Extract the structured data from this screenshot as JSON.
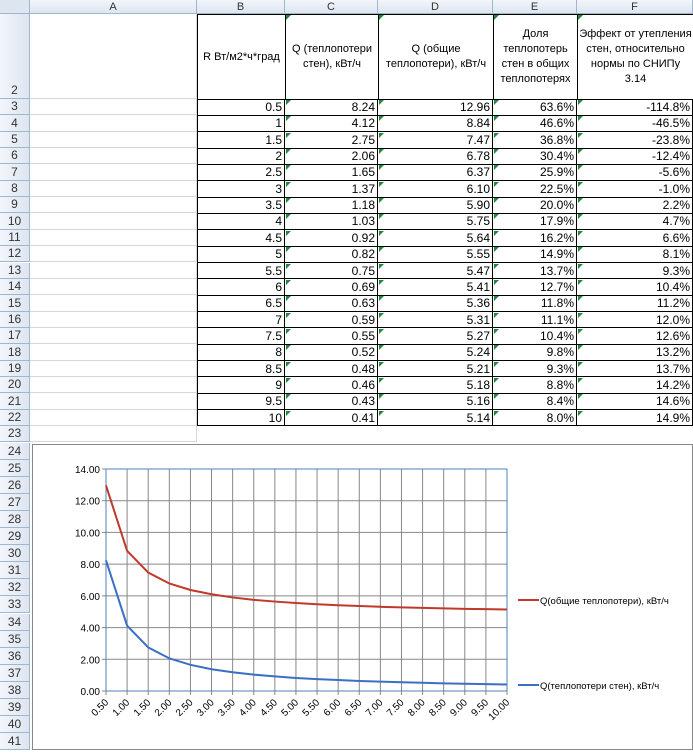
{
  "columns": [
    "A",
    "B",
    "C",
    "D",
    "E",
    "F"
  ],
  "headers": {
    "B": "R Вт/м2*ч*град",
    "C": "Q (теплопотери стен), кВт/ч",
    "D": "Q (общие теплопотери), кВт/ч",
    "E": "Доля теплопотерь стен в общих теплопотерях",
    "F": "Эффект от утепления стен, относительно нормы по СНИПу 3.14"
  },
  "rows": [
    [
      "0.5",
      "8.24",
      "12.96",
      "63.6%",
      "-114.8%"
    ],
    [
      "1",
      "4.12",
      "8.84",
      "46.6%",
      "-46.5%"
    ],
    [
      "1.5",
      "2.75",
      "7.47",
      "36.8%",
      "-23.8%"
    ],
    [
      "2",
      "2.06",
      "6.78",
      "30.4%",
      "-12.4%"
    ],
    [
      "2.5",
      "1.65",
      "6.37",
      "25.9%",
      "-5.6%"
    ],
    [
      "3",
      "1.37",
      "6.10",
      "22.5%",
      "-1.0%"
    ],
    [
      "3.5",
      "1.18",
      "5.90",
      "20.0%",
      "2.2%"
    ],
    [
      "4",
      "1.03",
      "5.75",
      "17.9%",
      "4.7%"
    ],
    [
      "4.5",
      "0.92",
      "5.64",
      "16.2%",
      "6.6%"
    ],
    [
      "5",
      "0.82",
      "5.55",
      "14.9%",
      "8.1%"
    ],
    [
      "5.5",
      "0.75",
      "5.47",
      "13.7%",
      "9.3%"
    ],
    [
      "6",
      "0.69",
      "5.41",
      "12.7%",
      "10.4%"
    ],
    [
      "6.5",
      "0.63",
      "5.36",
      "11.8%",
      "11.2%"
    ],
    [
      "7",
      "0.59",
      "5.31",
      "11.1%",
      "12.0%"
    ],
    [
      "7.5",
      "0.55",
      "5.27",
      "10.4%",
      "12.6%"
    ],
    [
      "8",
      "0.52",
      "5.24",
      "9.8%",
      "13.2%"
    ],
    [
      "8.5",
      "0.48",
      "5.21",
      "9.3%",
      "13.7%"
    ],
    [
      "9",
      "0.46",
      "5.18",
      "8.8%",
      "14.2%"
    ],
    [
      "9.5",
      "0.43",
      "5.16",
      "8.4%",
      "14.6%"
    ],
    [
      "10",
      "0.41",
      "5.14",
      "8.0%",
      "14.9%"
    ]
  ],
  "chart_data": {
    "type": "line",
    "categories": [
      "0.50",
      "1.00",
      "1.50",
      "2.00",
      "2.50",
      "3.00",
      "3.50",
      "4.00",
      "4.50",
      "5.00",
      "5.50",
      "6.00",
      "6.50",
      "7.00",
      "7.50",
      "8.00",
      "8.50",
      "9.00",
      "9.50",
      "10.00"
    ],
    "series": [
      {
        "name": "Q(общие теплопотери), кВт/ч",
        "color": "#c0392b",
        "values": [
          12.96,
          8.84,
          7.47,
          6.78,
          6.37,
          6.1,
          5.9,
          5.75,
          5.64,
          5.55,
          5.47,
          5.41,
          5.36,
          5.31,
          5.27,
          5.24,
          5.21,
          5.18,
          5.16,
          5.14
        ]
      },
      {
        "name": "Q(теплопотери стен), кВт/ч",
        "color": "#3a6fc4",
        "values": [
          8.24,
          4.12,
          2.75,
          2.06,
          1.65,
          1.37,
          1.18,
          1.03,
          0.92,
          0.82,
          0.75,
          0.69,
          0.63,
          0.59,
          0.55,
          0.52,
          0.48,
          0.46,
          0.43,
          0.41
        ]
      }
    ],
    "yticks": [
      "0.00",
      "2.00",
      "4.00",
      "6.00",
      "8.00",
      "10.00",
      "12.00",
      "14.00"
    ],
    "ylim": [
      0,
      14
    ],
    "grid": true,
    "legend": "right"
  }
}
